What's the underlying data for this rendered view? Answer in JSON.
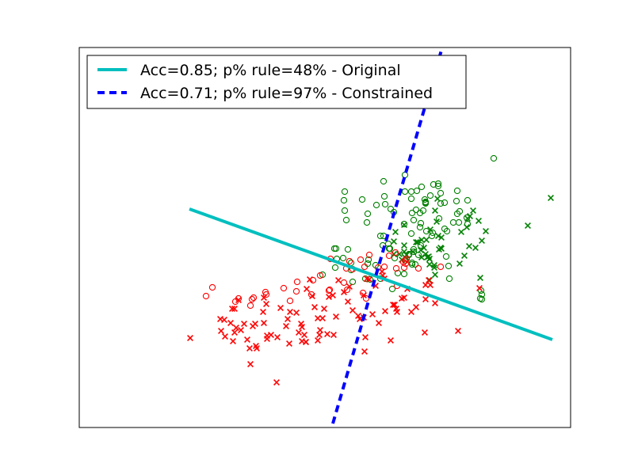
{
  "chart_data": {
    "type": "scatter",
    "title": "",
    "xlabel": "",
    "ylabel": "",
    "axes_ticks_visible": false,
    "grid": false,
    "xlim": [
      0,
      620
    ],
    "ylim": [
      0,
      480
    ],
    "legend": {
      "placement": "top-left",
      "entries": [
        {
          "label": "Acc=0.85; p% rule=48% - Original",
          "color": "#00bfbf",
          "style": "solid"
        },
        {
          "label": "Acc=0.71; p% rule=97% - Constrained",
          "color": "#0000ff",
          "style": "dashed"
        }
      ]
    },
    "lines": [
      {
        "name": "Acc=0.85; p% rule=48% - Original",
        "color": "#00bfbf",
        "style": "solid",
        "x": [
          139,
          597
        ],
        "y": [
          276,
          111
        ]
      },
      {
        "name": "Acc=0.71; p% rule=97% - Constrained",
        "color": "#0000ff",
        "style": "dashed",
        "x": [
          320,
          458
        ],
        "y": [
          5,
          480
        ]
      }
    ],
    "series": [
      {
        "color": "#008000",
        "marker": "circle",
        "points": [
          [
            523,
            340
          ],
          [
            335,
            298
          ],
          [
            334,
            287
          ],
          [
            335,
            274
          ],
          [
            337,
            262
          ],
          [
            357,
            288
          ],
          [
            363,
            259
          ],
          [
            384,
            311
          ],
          [
            364,
            270
          ],
          [
            385,
            292
          ],
          [
            375,
            281
          ],
          [
            397,
            272
          ],
          [
            386,
            282
          ],
          [
            411,
            298
          ],
          [
            393,
            276
          ],
          [
            411,
            319
          ],
          [
            419,
            289
          ],
          [
            420,
            271
          ],
          [
            431,
            258
          ],
          [
            425,
            275
          ],
          [
            422,
            262
          ],
          [
            419,
            298
          ],
          [
            426,
            299
          ],
          [
            432,
            304
          ],
          [
            438,
            248
          ],
          [
            445,
            242
          ],
          [
            443,
            293
          ],
          [
            447,
            307
          ],
          [
            453,
            305
          ],
          [
            456,
            283
          ],
          [
            456,
            296
          ],
          [
            476,
            286
          ],
          [
            477,
            299
          ],
          [
            480,
            273
          ],
          [
            477,
            270
          ],
          [
            490,
            287
          ],
          [
            463,
            216
          ],
          [
            472,
            259
          ],
          [
            479,
            259
          ],
          [
            461,
            284
          ],
          [
            490,
            257
          ],
          [
            454,
            264
          ],
          [
            431,
            230
          ],
          [
            380,
            242
          ],
          [
            391,
            226
          ],
          [
            383,
            230
          ],
          [
            390,
            232
          ],
          [
            412,
            211
          ],
          [
            420,
            206
          ],
          [
            428,
            218
          ],
          [
            398,
            214
          ],
          [
            324,
            226
          ],
          [
            333,
            214
          ],
          [
            307,
            193
          ],
          [
            323,
            202
          ],
          [
            339,
            225
          ],
          [
            392,
            226
          ],
          [
            422,
            225
          ],
          [
            416,
            218
          ],
          [
            384,
            242
          ],
          [
            410,
            257
          ],
          [
            420,
            208
          ],
          [
            424,
            206
          ],
          [
            453,
            308
          ],
          [
            489,
            265
          ],
          [
            508,
            162
          ],
          [
            365,
            212
          ],
          [
            374,
            205
          ],
          [
            364,
            207
          ],
          [
            416,
            219
          ],
          [
            419,
            245
          ],
          [
            402,
            195
          ],
          [
            422,
            222
          ],
          [
            367,
            187
          ],
          [
            380,
            188
          ],
          [
            395,
            175
          ],
          [
            361,
            188
          ],
          [
            325,
            213
          ],
          [
            345,
            184
          ],
          [
            343,
            199
          ],
          [
            410,
            194
          ],
          [
            466,
            204
          ],
          [
            467,
            188
          ],
          [
            506,
            163
          ],
          [
            508,
            168
          ],
          [
            507,
            173
          ],
          [
            343,
            208
          ],
          [
            322,
            226
          ],
          [
            430,
            253
          ],
          [
            430,
            271
          ],
          [
            434,
            274
          ],
          [
            436,
            288
          ],
          [
            437,
            284
          ],
          [
            437,
            285
          ],
          [
            437,
            283
          ],
          [
            446,
            246
          ],
          [
            461,
            251
          ],
          [
            464,
            248
          ]
        ]
      },
      {
        "color": "#008000",
        "marker": "x",
        "points": [
          [
            595,
            290
          ],
          [
            566,
            255
          ],
          [
            513,
            248
          ],
          [
            492,
            229
          ],
          [
            490,
            264
          ],
          [
            493,
            267
          ],
          [
            482,
            247
          ],
          [
            489,
            253
          ],
          [
            497,
            274
          ],
          [
            504,
            261
          ],
          [
            508,
            236
          ],
          [
            506,
            189
          ],
          [
            441,
            216
          ],
          [
            452,
            289
          ],
          [
            437,
            219
          ],
          [
            432,
            237
          ],
          [
            421,
            222
          ],
          [
            410,
            256
          ],
          [
            399,
            247
          ],
          [
            404,
            219
          ],
          [
            407,
            212
          ],
          [
            411,
            215
          ],
          [
            413,
            218
          ],
          [
            410,
            222
          ],
          [
            442,
            206
          ],
          [
            457,
            240
          ],
          [
            443,
            250
          ],
          [
            453,
            242
          ],
          [
            442,
            213
          ],
          [
            435,
            227
          ],
          [
            431,
            224
          ],
          [
            449,
            193
          ],
          [
            456,
            227
          ],
          [
            442,
            213
          ],
          [
            448,
            202
          ],
          [
            425,
            234
          ],
          [
            427,
            234
          ],
          [
            442,
            186
          ],
          [
            448,
            205
          ],
          [
            397,
            235
          ],
          [
            397,
            219
          ],
          [
            439,
            215
          ],
          [
            457,
            226
          ],
          [
            500,
            227
          ],
          [
            480,
            207
          ],
          [
            486,
            217
          ],
          [
            438,
            237
          ],
          [
            432,
            215
          ],
          [
            454,
            225
          ],
          [
            410,
            230
          ],
          [
            451,
            260
          ],
          [
            449,
            274
          ]
        ]
      },
      {
        "color": "#ff0000",
        "marker": "circle",
        "points": [
          [
            168,
            177
          ],
          [
            160,
            166
          ],
          [
            197,
            159
          ],
          [
            201,
            163
          ],
          [
            218,
            162
          ],
          [
            216,
            154
          ],
          [
            220,
            164
          ],
          [
            235,
            171
          ],
          [
            236,
            168
          ],
          [
            258,
            176
          ],
          [
            266,
            160
          ],
          [
            274,
            172
          ],
          [
            275,
            184
          ],
          [
            293,
            168
          ],
          [
            295,
            186
          ],
          [
            315,
            173
          ],
          [
            304,
            192
          ],
          [
            316,
            174
          ],
          [
            317,
            213
          ],
          [
            334,
            183
          ],
          [
            338,
            174
          ],
          [
            341,
            210
          ],
          [
            345,
            200
          ],
          [
            337,
            201
          ],
          [
            355,
            212
          ],
          [
            360,
            203
          ],
          [
            358,
            170
          ],
          [
            362,
            163
          ],
          [
            366,
            218
          ],
          [
            377,
            202
          ],
          [
            385,
            203
          ],
          [
            391,
            217
          ],
          [
            399,
            221
          ],
          [
            401,
            179
          ],
          [
            400,
            201
          ],
          [
            411,
            211
          ],
          [
            412,
            207
          ],
          [
            410,
            202
          ],
          [
            413,
            213
          ],
          [
            409,
            209
          ],
          [
            428,
            201
          ],
          [
            456,
            203
          ]
        ]
      },
      {
        "color": "#ff0000",
        "marker": "x",
        "points": [
          [
            140,
            113
          ],
          [
            178,
            137
          ],
          [
            179,
            122
          ],
          [
            184,
            115
          ],
          [
            183,
            136
          ],
          [
            191,
            132
          ],
          [
            193,
            150
          ],
          [
            201,
            161
          ],
          [
            196,
            150
          ],
          [
            198,
            126
          ],
          [
            204,
            123
          ],
          [
            212,
            111
          ],
          [
            215,
            100
          ],
          [
            223,
            103
          ],
          [
            219,
            128
          ],
          [
            222,
            131
          ],
          [
            232,
            146
          ],
          [
            233,
            132
          ],
          [
            236,
            156
          ],
          [
            233,
            164
          ],
          [
            242,
            117
          ],
          [
            250,
            114
          ],
          [
            254,
            151
          ],
          [
            261,
            128
          ],
          [
            263,
            137
          ],
          [
            265,
            106
          ],
          [
            266,
            146
          ],
          [
            274,
            145
          ],
          [
            277,
            120
          ],
          [
            280,
            131
          ],
          [
            281,
            127
          ],
          [
            281,
            109
          ],
          [
            284,
            117
          ],
          [
            286,
            108
          ],
          [
            286,
            108
          ],
          [
            294,
            166
          ],
          [
            297,
            152
          ],
          [
            301,
            110
          ],
          [
            301,
            138
          ],
          [
            303,
            117
          ],
          [
            304,
            123
          ],
          [
            307,
            138
          ],
          [
            309,
            150
          ],
          [
            315,
            165
          ],
          [
            321,
            117
          ],
          [
            324,
            140
          ],
          [
            327,
            186
          ],
          [
            334,
            171
          ],
          [
            341,
            178
          ],
          [
            345,
            148
          ],
          [
            352,
            141
          ],
          [
            354,
            137
          ],
          [
            359,
            167
          ],
          [
            363,
            188
          ],
          [
            366,
            187
          ],
          [
            374,
            179
          ],
          [
            378,
            132
          ],
          [
            386,
            147
          ],
          [
            393,
            110
          ],
          [
            396,
            155
          ],
          [
            400,
            150
          ],
          [
            401,
            146
          ],
          [
            410,
            164
          ],
          [
            419,
            146
          ],
          [
            425,
            152
          ],
          [
            436,
            120
          ],
          [
            437,
            180
          ],
          [
            441,
            186
          ],
          [
            449,
            157
          ],
          [
            478,
            122
          ],
          [
            505,
            176
          ],
          [
            287,
            175
          ],
          [
            313,
            118
          ],
          [
            360,
            96
          ],
          [
            361,
            114
          ],
          [
            370,
            143
          ],
          [
            407,
            163
          ],
          [
            414,
            175
          ],
          [
            249,
            57
          ],
          [
            216,
            80
          ],
          [
            208,
            131
          ],
          [
            224,
            100
          ],
          [
            237,
            112
          ],
          [
            237,
            116
          ],
          [
            194,
            109
          ],
          [
            196,
            120
          ],
          [
            339,
            159
          ],
          [
            382,
            197
          ],
          [
            383,
            192
          ],
          [
            385,
            188
          ],
          [
            437,
            162
          ],
          [
            443,
            180
          ],
          [
            398,
            155
          ],
          [
            359,
            139
          ],
          [
            291,
            187
          ],
          [
            320,
            167
          ]
        ]
      }
    ]
  }
}
